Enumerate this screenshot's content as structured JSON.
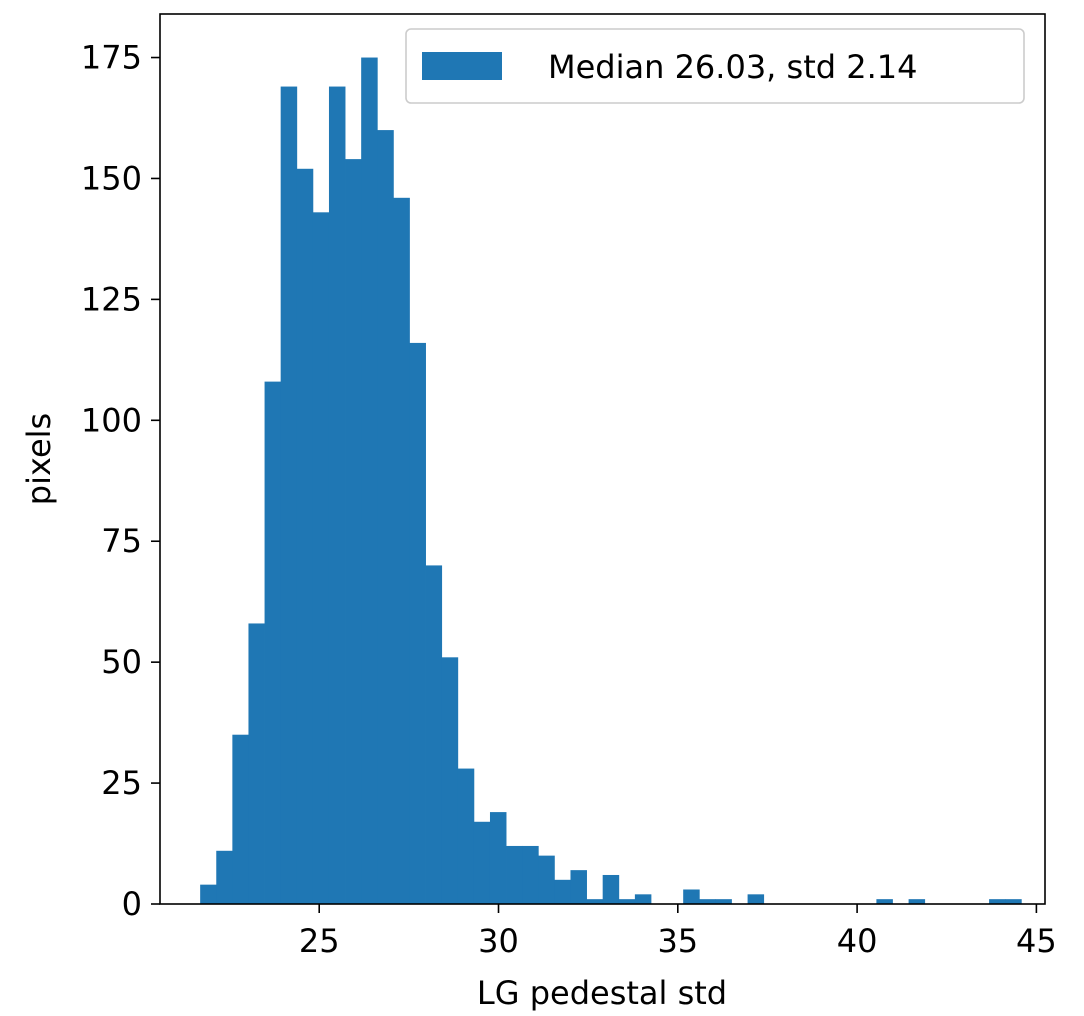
{
  "chart_data": {
    "type": "histogram",
    "xlabel": "LG pedestal std",
    "ylabel": "pixels",
    "xlim": [
      20.56,
      45.24
    ],
    "ylim": [
      0,
      184
    ],
    "xticks": [
      25,
      30,
      35,
      40,
      45
    ],
    "yticks": [
      0,
      25,
      50,
      75,
      100,
      125,
      150,
      175
    ],
    "bar_color": "#1f77b4",
    "legend": {
      "label": "Median 26.03, std 2.14",
      "placement": "upper right"
    },
    "bin_start": 21.68,
    "bin_width": 0.449,
    "counts": [
      4,
      11,
      35,
      58,
      108,
      169,
      152,
      143,
      169,
      154,
      175,
      160,
      146,
      116,
      70,
      51,
      28,
      17,
      19,
      12,
      12,
      10,
      5,
      7,
      1,
      6,
      1,
      2,
      0,
      0,
      3,
      1,
      1,
      0,
      2,
      0,
      0,
      0,
      0,
      0,
      0,
      0,
      1,
      0,
      1,
      0,
      0,
      0,
      0,
      1,
      1
    ]
  }
}
